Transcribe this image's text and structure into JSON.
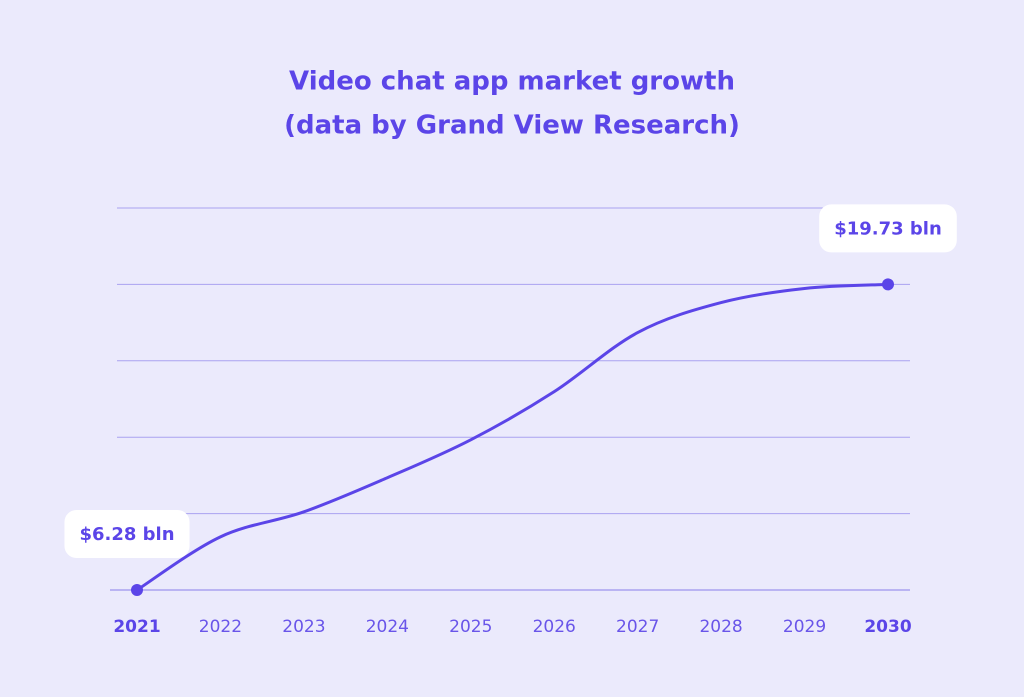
{
  "chart_data": {
    "type": "line",
    "title": [
      "Video chat app market growth",
      "(data by Grand View Research)"
    ],
    "categories": [
      "2021",
      "2022",
      "2023",
      "2024",
      "2025",
      "2026",
      "2027",
      "2028",
      "2029",
      "2030"
    ],
    "series": [
      {
        "color": "#5b45e8",
        "values": [
          6.28,
          8.62,
          9.72,
          11.22,
          12.89,
          15.01,
          17.61,
          18.93,
          19.55,
          19.73
        ],
        "value_labels": [
          "$6.28 bln",
          null,
          null,
          null,
          null,
          null,
          null,
          null,
          null,
          "$19.73 bln"
        ]
      }
    ],
    "ylim": [
      6.28,
      23.0925
    ],
    "yticks": [
      6.28,
      9.6425,
      13.005,
      16.3675,
      19.73,
      23.0925
    ],
    "grid": true,
    "grid_color": "#aaa2f0",
    "text_color": "#5b45e8",
    "background": "#ebeafc"
  }
}
